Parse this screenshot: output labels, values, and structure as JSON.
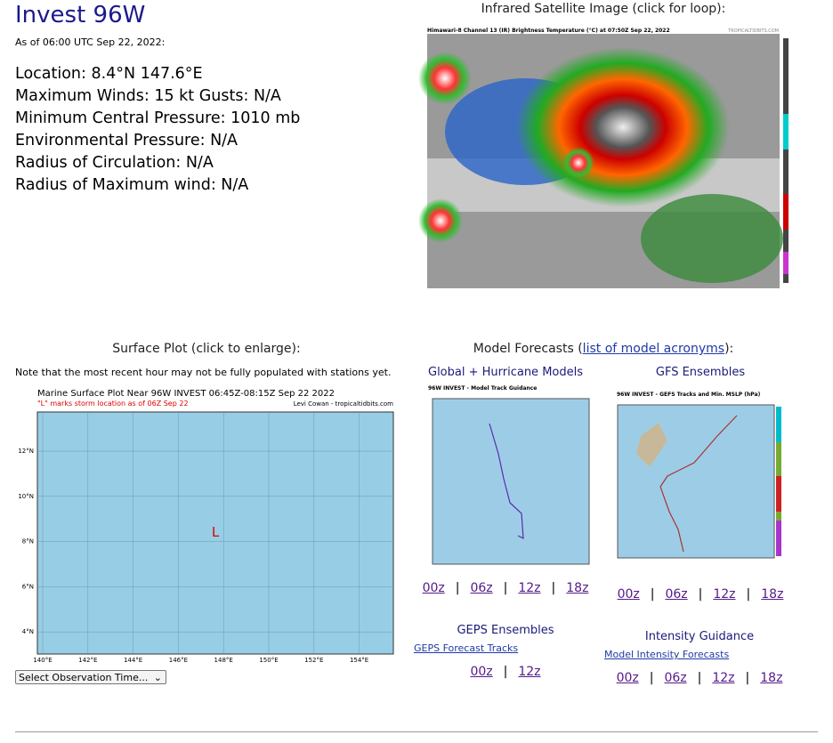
{
  "header": {
    "title": "Invest 96W",
    "as_of": "As of 06:00 UTC Sep 22, 2022:"
  },
  "info": [
    "Location: 8.4°N 147.6°E",
    "Maximum Winds: 15 kt  Gusts: N/A",
    "Minimum Central Pressure: 1010 mb",
    "Environmental Pressure: N/A",
    "Radius of Circulation: N/A",
    "Radius of Maximum wind: N/A"
  ],
  "satellite": {
    "heading": "Infrared Satellite Image (click for loop):",
    "image_title": "Himawari-8 Channel 13 (IR) Brightness Temperature (°C) at 07:50Z Sep 22, 2022",
    "credit": "TROPICALTIDBITS.COM"
  },
  "surface": {
    "heading": "Surface Plot (click to enlarge):",
    "note": "Note that the most recent hour may not be fully populated with stations yet.",
    "plot_title": "Marine Surface Plot Near 96W INVEST 06:45Z-08:15Z Sep 22 2022",
    "plot_subtitle": "\"L\" marks storm location as of 06Z Sep 22",
    "credit": "Levi Cowan - tropicaltidbits.com",
    "storm": "L",
    "lon_labels": [
      "140°E",
      "142°E",
      "144°E",
      "146°E",
      "148°E",
      "150°E",
      "152°E",
      "154°E"
    ],
    "lat_labels": [
      "12°N",
      "10°N",
      "8°N",
      "6°N",
      "4°N"
    ],
    "select": "Select Observation Time..."
  },
  "models": {
    "heading": "Model Forecasts (",
    "link": "list of model acronyms",
    "heading_end": "):",
    "separator": "|",
    "panels": [
      {
        "title": "Global + Hurricane Models",
        "image_title": "96W INVEST - Model Track Guidance",
        "links": [
          "00z",
          "06z",
          "12z",
          "18z"
        ]
      },
      {
        "title": "GFS Ensembles",
        "image_title": "96W INVEST - GEFS Tracks and Min. MSLP (hPa)",
        "links": [
          "00z",
          "06z",
          "12z",
          "18z"
        ]
      },
      {
        "title": "GEPS Ensembles",
        "sublink": "GEPS Forecast Tracks",
        "links": [
          "00z",
          "12z"
        ]
      },
      {
        "title": "Intensity Guidance",
        "sublink": "Model Intensity Forecasts",
        "links": [
          "00z",
          "06z",
          "12z",
          "18z"
        ]
      }
    ]
  }
}
